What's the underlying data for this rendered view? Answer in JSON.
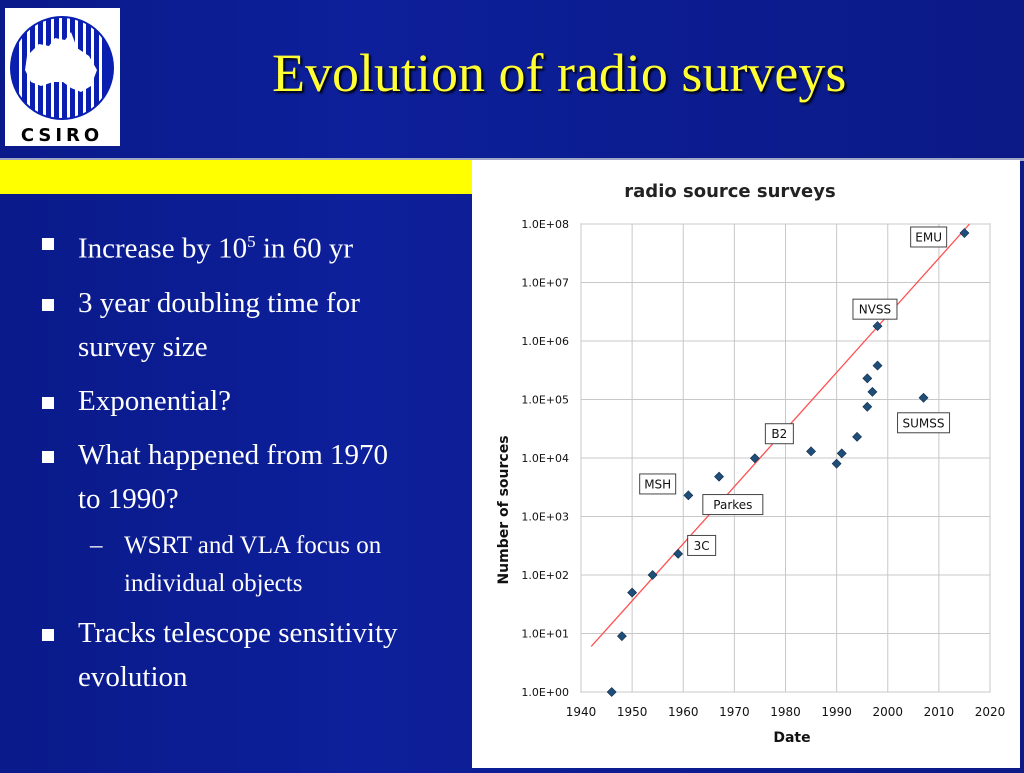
{
  "logo": {
    "text": "CSIRO"
  },
  "slide": {
    "title": "Evolution of radio surveys"
  },
  "bullets": [
    {
      "text": "Increase by 10",
      "sup": "5",
      "after": " in 60 yr"
    },
    {
      "text": "3 year doubling time for survey size"
    },
    {
      "text": "Exponential?"
    },
    {
      "text": "What happened from 1970 to 1990?"
    },
    {
      "text": "WSRT and VLA focus on individual objects"
    },
    {
      "text": "Tracks telescope sensitivity evolution"
    }
  ],
  "colors": {
    "background": "#0b1a86",
    "title": "#ffff33",
    "band": "#ffff00",
    "point": "#1f4e79",
    "trend": "#ff5050"
  },
  "chart_data": {
    "type": "scatter",
    "title": "radio source surveys",
    "xlabel": "Date",
    "ylabel": "Number of sources",
    "xlim": [
      1940,
      2020
    ],
    "ylim": [
      0,
      8
    ],
    "log_y": true,
    "grid": true,
    "x_ticks": [
      "1940",
      "1950",
      "1960",
      "1970",
      "1980",
      "1990",
      "2000",
      "2010",
      "2020"
    ],
    "y_ticks": [
      "1.0E+00",
      "1.0E+01",
      "1.0E+02",
      "1.0E+03",
      "1.0E+04",
      "1.0E+05",
      "1.0E+06",
      "1.0E+07",
      "1.0E+08"
    ],
    "points": [
      {
        "x": 1946,
        "y": 1
      },
      {
        "x": 1948,
        "y": 9
      },
      {
        "x": 1950,
        "y": 50
      },
      {
        "x": 1954,
        "y": 100
      },
      {
        "x": 1959,
        "y": 230
      },
      {
        "x": 1961,
        "y": 2300
      },
      {
        "x": 1965,
        "y": 1800
      },
      {
        "x": 1967,
        "y": 4800
      },
      {
        "x": 1974,
        "y": 9900
      },
      {
        "x": 1985,
        "y": 13000
      },
      {
        "x": 1990,
        "y": 8000
      },
      {
        "x": 1991,
        "y": 12000
      },
      {
        "x": 1994,
        "y": 23000
      },
      {
        "x": 1996,
        "y": 75000
      },
      {
        "x": 1996,
        "y": 230000
      },
      {
        "x": 1997,
        "y": 135000
      },
      {
        "x": 1998,
        "y": 380000
      },
      {
        "x": 1998,
        "y": 1800000
      },
      {
        "x": 2007,
        "y": 107000
      },
      {
        "x": 2015,
        "y": 70000000
      }
    ],
    "trend": {
      "x": [
        1942,
        2016
      ],
      "y": [
        6,
        100000000
      ]
    },
    "annotations": [
      {
        "text": "EMU",
        "x": 2008,
        "y": 60000000
      },
      {
        "text": "NVSS",
        "x": 1997.5,
        "y": 3500000
      },
      {
        "text": "SUMSS",
        "x": 2007,
        "y": 40000
      },
      {
        "text": "B2",
        "x": 1978.8,
        "y": 26000
      },
      {
        "text": "MSH",
        "x": 1955,
        "y": 3600
      },
      {
        "text": "Parkes",
        "x": 1969.7,
        "y": 1600
      },
      {
        "text": "3C",
        "x": 1963.6,
        "y": 320
      }
    ]
  }
}
